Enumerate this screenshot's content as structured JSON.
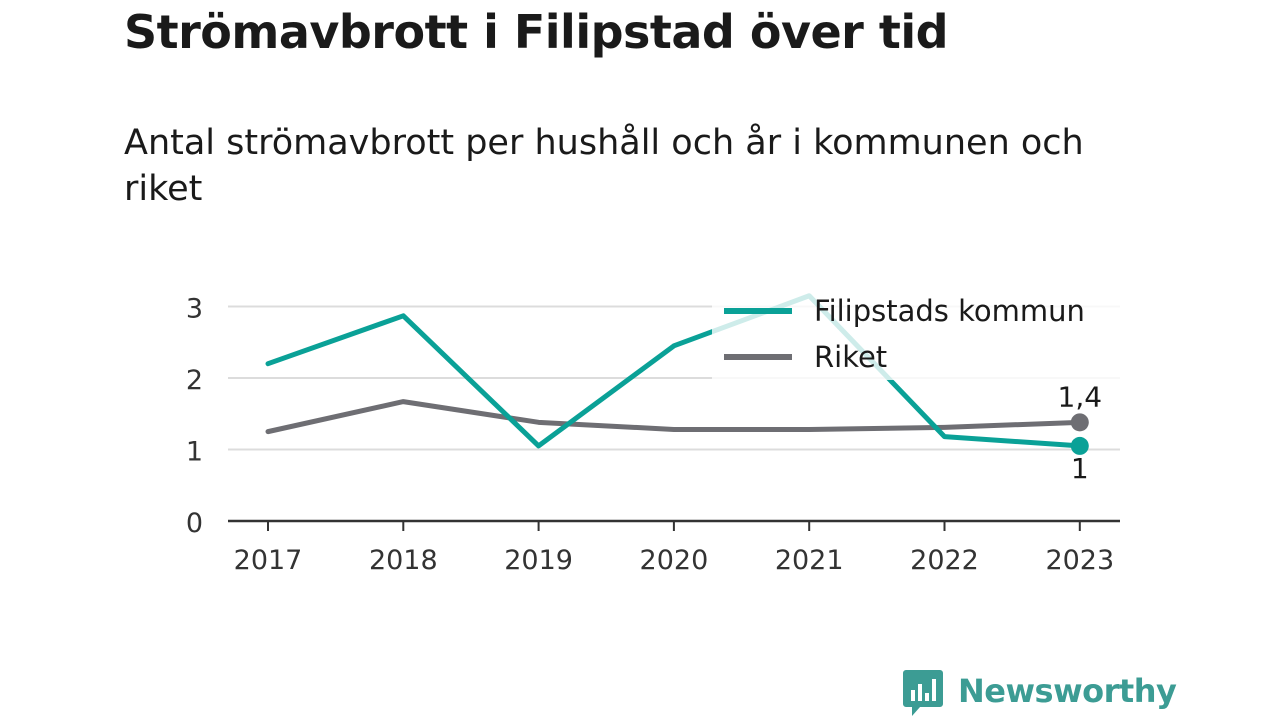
{
  "title": "Strömavbrott i Filipstad över tid",
  "subtitle": "Antal strömavbrott per hushåll och år i kommunen och riket",
  "brand": {
    "name": "Newsworthy"
  },
  "colors": {
    "filipstad": "#0aa197",
    "riket": "#6e6e73",
    "grid": "#dcdcdc",
    "axis": "#333333",
    "text": "#1a1a1a",
    "brand": "#3c9c94"
  },
  "chart_data": {
    "type": "line",
    "title": "Strömavbrott i Filipstad över tid",
    "subtitle": "Antal strömavbrott per hushåll och år i kommunen och riket",
    "xlabel": "",
    "ylabel": "",
    "x": [
      "2017",
      "2018",
      "2019",
      "2020",
      "2021",
      "2022",
      "2023"
    ],
    "ylim": [
      0,
      3
    ],
    "yticks": [
      "0",
      "1",
      "2",
      "3"
    ],
    "grid": true,
    "legend_position": "top-right",
    "series": [
      {
        "name": "Filipstads kommun",
        "color": "#0aa197",
        "values": [
          2.2,
          2.87,
          1.05,
          2.45,
          3.15,
          1.18,
          1.05
        ],
        "end_label": "1"
      },
      {
        "name": "Riket",
        "color": "#6e6e73",
        "values": [
          1.25,
          1.67,
          1.38,
          1.28,
          1.28,
          1.31,
          1.38
        ],
        "end_label": "1,4"
      }
    ]
  }
}
